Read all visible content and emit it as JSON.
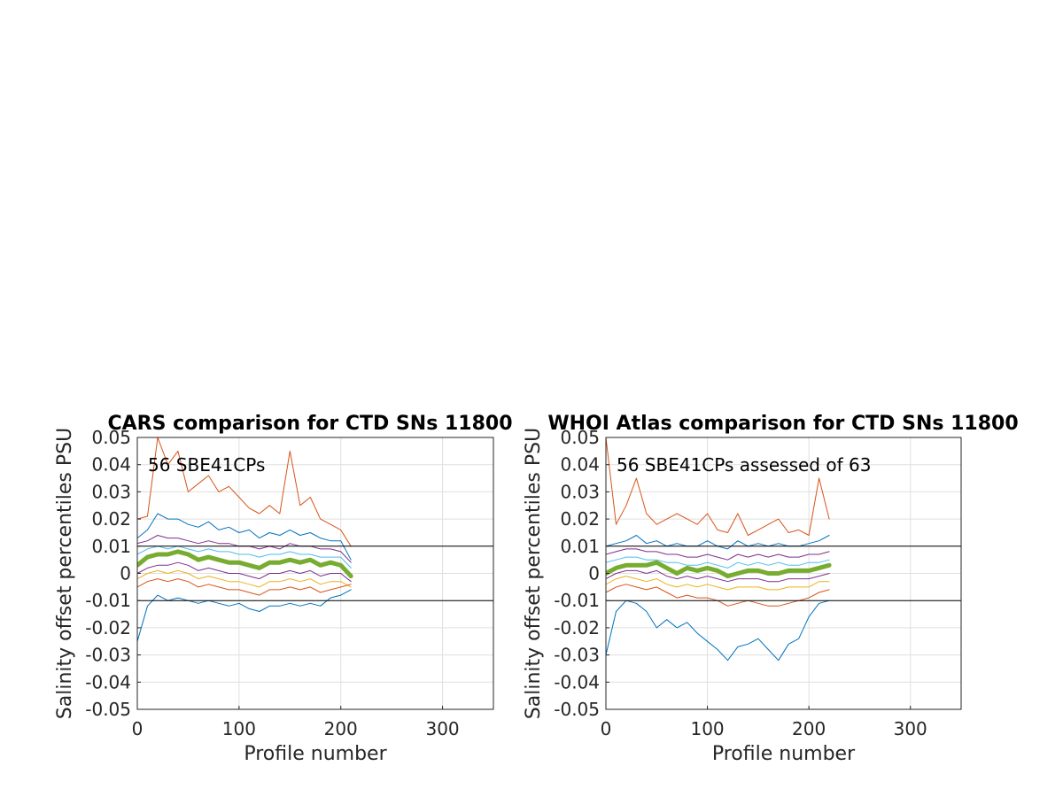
{
  "chart_data": [
    {
      "type": "line",
      "title": "CARS comparison for CTD SNs 11800",
      "xlabel": "Profile number",
      "ylabel": "Salinity offset percentiles PSU",
      "annotation": "56 SBE41CPs",
      "xlim": [
        0,
        350
      ],
      "ylim": [
        -0.05,
        0.05
      ],
      "xticks": [
        0,
        100,
        200,
        300
      ],
      "xtick_labels": [
        "0",
        "100",
        "200",
        "300"
      ],
      "yticks": [
        -0.05,
        -0.04,
        -0.03,
        -0.02,
        -0.01,
        0,
        0.01,
        0.02,
        0.03,
        0.04,
        0.05
      ],
      "ytick_labels": [
        "-0.05",
        "-0.04",
        "-0.03",
        "-0.02",
        "-0.01",
        "0",
        "0.01",
        "0.02",
        "0.03",
        "0.04",
        "0.05"
      ],
      "grid": true,
      "reference_lines": [
        0.01,
        -0.01
      ],
      "x": [
        0,
        10,
        20,
        30,
        40,
        50,
        60,
        70,
        80,
        90,
        100,
        110,
        120,
        130,
        140,
        150,
        160,
        170,
        180,
        190,
        200,
        210
      ],
      "series": [
        {
          "color": "#D95319",
          "width": 1,
          "values": [
            0.02,
            0.021,
            0.05,
            0.04,
            0.045,
            0.03,
            0.033,
            0.036,
            0.03,
            0.032,
            0.028,
            0.024,
            0.022,
            0.025,
            0.022,
            0.045,
            0.025,
            0.028,
            0.02,
            0.018,
            0.016,
            0.01
          ]
        },
        {
          "color": "#0072BD",
          "width": 1,
          "values": [
            0.013,
            0.016,
            0.022,
            0.02,
            0.02,
            0.018,
            0.017,
            0.019,
            0.016,
            0.017,
            0.015,
            0.016,
            0.013,
            0.015,
            0.014,
            0.016,
            0.014,
            0.015,
            0.013,
            0.012,
            0.012,
            0.005
          ]
        },
        {
          "color": "#7E2F8E",
          "width": 1,
          "values": [
            0.011,
            0.012,
            0.014,
            0.013,
            0.013,
            0.012,
            0.011,
            0.012,
            0.011,
            0.011,
            0.01,
            0.01,
            0.009,
            0.01,
            0.009,
            0.011,
            0.01,
            0.01,
            0.009,
            0.009,
            0.008,
            0.004
          ]
        },
        {
          "color": "#4DBEEE",
          "width": 1,
          "values": [
            0.007,
            0.009,
            0.01,
            0.009,
            0.01,
            0.009,
            0.008,
            0.009,
            0.008,
            0.008,
            0.007,
            0.007,
            0.006,
            0.007,
            0.007,
            0.008,
            0.007,
            0.007,
            0.006,
            0.006,
            0.006,
            0.002
          ]
        },
        {
          "color": "#77AC30",
          "width": 5,
          "values": [
            0.003,
            0.006,
            0.007,
            0.007,
            0.008,
            0.007,
            0.005,
            0.006,
            0.005,
            0.004,
            0.004,
            0.003,
            0.002,
            0.004,
            0.004,
            0.005,
            0.004,
            0.005,
            0.003,
            0.004,
            0.003,
            -0.001
          ]
        },
        {
          "color": "#7E2F8E",
          "width": 1,
          "values": [
            0.0,
            0.002,
            0.003,
            0.003,
            0.004,
            0.003,
            0.001,
            0.002,
            0.001,
            0.0,
            0.0,
            -0.001,
            -0.002,
            0.0,
            0.0,
            0.001,
            0.0,
            0.001,
            -0.001,
            0.0,
            0.0,
            -0.003
          ]
        },
        {
          "color": "#EDB120",
          "width": 1,
          "values": [
            -0.002,
            0.0,
            0.001,
            0.0,
            0.001,
            0.0,
            -0.002,
            -0.001,
            -0.002,
            -0.003,
            -0.003,
            -0.004,
            -0.005,
            -0.003,
            -0.003,
            -0.002,
            -0.003,
            -0.002,
            -0.004,
            -0.003,
            -0.003,
            -0.005
          ]
        },
        {
          "color": "#D95319",
          "width": 1,
          "values": [
            -0.005,
            -0.003,
            -0.002,
            -0.003,
            -0.002,
            -0.003,
            -0.005,
            -0.004,
            -0.005,
            -0.006,
            -0.006,
            -0.007,
            -0.008,
            -0.006,
            -0.006,
            -0.005,
            -0.006,
            -0.005,
            -0.007,
            -0.006,
            -0.005,
            -0.004
          ]
        },
        {
          "color": "#0072BD",
          "width": 1,
          "values": [
            -0.025,
            -0.012,
            -0.008,
            -0.01,
            -0.009,
            -0.01,
            -0.011,
            -0.01,
            -0.011,
            -0.012,
            -0.011,
            -0.013,
            -0.014,
            -0.012,
            -0.012,
            -0.011,
            -0.012,
            -0.011,
            -0.012,
            -0.009,
            -0.008,
            -0.006
          ]
        }
      ]
    },
    {
      "type": "line",
      "title": "WHOI Atlas comparison for CTD SNs 11800",
      "xlabel": "Profile number",
      "ylabel": "Salinity offset percentiles PSU",
      "annotation": "56 SBE41CPs assessed of 63",
      "xlim": [
        0,
        350
      ],
      "ylim": [
        -0.05,
        0.05
      ],
      "xticks": [
        0,
        100,
        200,
        300
      ],
      "xtick_labels": [
        "0",
        "100",
        "200",
        "300"
      ],
      "yticks": [
        -0.05,
        -0.04,
        -0.03,
        -0.02,
        -0.01,
        0,
        0.01,
        0.02,
        0.03,
        0.04,
        0.05
      ],
      "ytick_labels": [
        "-0.05",
        "-0.04",
        "-0.03",
        "-0.02",
        "-0.01",
        "0",
        "0.01",
        "0.02",
        "0.03",
        "0.04",
        "0.05"
      ],
      "grid": true,
      "reference_lines": [
        0.01,
        -0.01
      ],
      "x": [
        0,
        10,
        20,
        30,
        40,
        50,
        60,
        70,
        80,
        90,
        100,
        110,
        120,
        130,
        140,
        150,
        160,
        170,
        180,
        190,
        200,
        210,
        220
      ],
      "series": [
        {
          "color": "#D95319",
          "width": 1,
          "values": [
            0.05,
            0.018,
            0.025,
            0.035,
            0.022,
            0.018,
            0.02,
            0.022,
            0.02,
            0.018,
            0.022,
            0.016,
            0.015,
            0.022,
            0.014,
            0.016,
            0.018,
            0.02,
            0.015,
            0.016,
            0.014,
            0.035,
            0.02
          ]
        },
        {
          "color": "#0072BD",
          "width": 1,
          "values": [
            0.01,
            0.011,
            0.012,
            0.014,
            0.011,
            0.012,
            0.01,
            0.011,
            0.01,
            0.01,
            0.012,
            0.01,
            0.009,
            0.012,
            0.01,
            0.011,
            0.01,
            0.011,
            0.01,
            0.01,
            0.011,
            0.012,
            0.014
          ]
        },
        {
          "color": "#7E2F8E",
          "width": 1,
          "values": [
            0.007,
            0.008,
            0.009,
            0.009,
            0.008,
            0.008,
            0.007,
            0.007,
            0.006,
            0.006,
            0.007,
            0.006,
            0.005,
            0.007,
            0.006,
            0.007,
            0.006,
            0.007,
            0.006,
            0.006,
            0.007,
            0.007,
            0.008
          ]
        },
        {
          "color": "#4DBEEE",
          "width": 1,
          "values": [
            0.004,
            0.005,
            0.006,
            0.006,
            0.005,
            0.005,
            0.004,
            0.004,
            0.003,
            0.003,
            0.004,
            0.003,
            0.002,
            0.004,
            0.003,
            0.004,
            0.003,
            0.004,
            0.003,
            0.003,
            0.004,
            0.004,
            0.005
          ]
        },
        {
          "color": "#77AC30",
          "width": 5,
          "values": [
            0.0,
            0.002,
            0.003,
            0.003,
            0.003,
            0.004,
            0.002,
            0.0,
            0.002,
            0.001,
            0.002,
            0.001,
            -0.001,
            0.0,
            0.001,
            0.001,
            0.0,
            0.0,
            0.001,
            0.001,
            0.001,
            0.002,
            0.003
          ]
        },
        {
          "color": "#7E2F8E",
          "width": 1,
          "values": [
            -0.002,
            0.0,
            0.001,
            0.001,
            0.0,
            0.001,
            -0.001,
            -0.002,
            -0.001,
            -0.002,
            -0.001,
            -0.002,
            -0.003,
            -0.002,
            -0.002,
            -0.002,
            -0.003,
            -0.003,
            -0.002,
            -0.002,
            -0.002,
            -0.001,
            0.0
          ]
        },
        {
          "color": "#EDB120",
          "width": 1,
          "values": [
            -0.004,
            -0.002,
            -0.001,
            -0.002,
            -0.003,
            -0.002,
            -0.004,
            -0.005,
            -0.004,
            -0.005,
            -0.004,
            -0.005,
            -0.006,
            -0.005,
            -0.005,
            -0.005,
            -0.006,
            -0.006,
            -0.005,
            -0.005,
            -0.005,
            -0.003,
            -0.003
          ]
        },
        {
          "color": "#D95319",
          "width": 1,
          "values": [
            -0.007,
            -0.005,
            -0.004,
            -0.005,
            -0.006,
            -0.005,
            -0.007,
            -0.009,
            -0.008,
            -0.009,
            -0.009,
            -0.01,
            -0.012,
            -0.011,
            -0.01,
            -0.011,
            -0.012,
            -0.012,
            -0.011,
            -0.01,
            -0.009,
            -0.007,
            -0.006
          ]
        },
        {
          "color": "#0072BD",
          "width": 1,
          "values": [
            -0.03,
            -0.014,
            -0.01,
            -0.011,
            -0.014,
            -0.02,
            -0.017,
            -0.02,
            -0.018,
            -0.022,
            -0.025,
            -0.028,
            -0.032,
            -0.027,
            -0.026,
            -0.024,
            -0.028,
            -0.032,
            -0.026,
            -0.024,
            -0.016,
            -0.011,
            -0.01
          ]
        }
      ]
    }
  ]
}
